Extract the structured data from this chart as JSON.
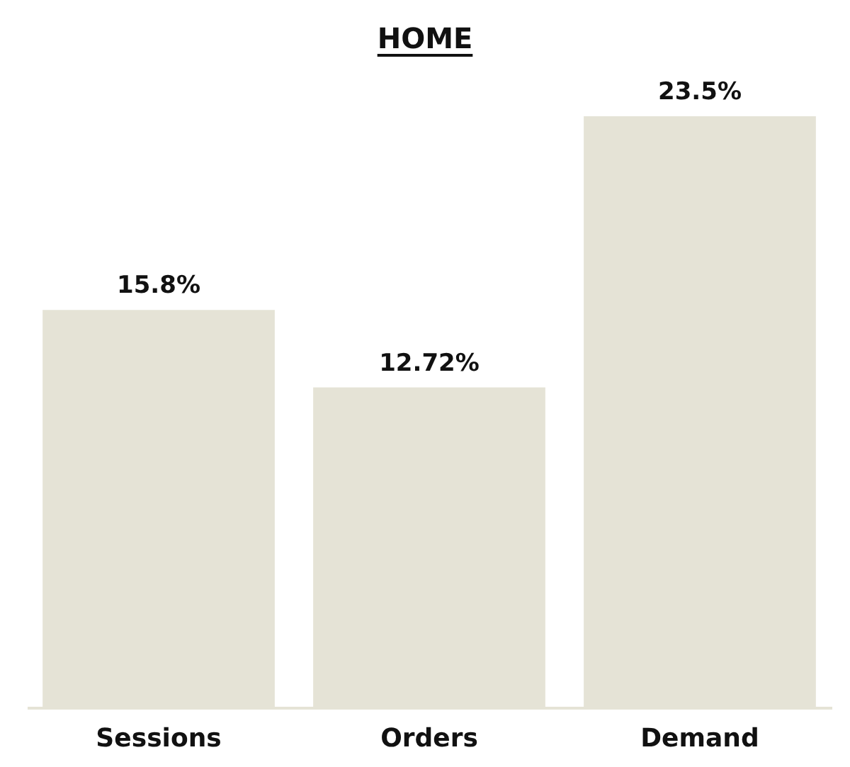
{
  "chart_data": {
    "type": "bar",
    "title": "HOME",
    "categories": [
      "Sessions",
      "Orders",
      "Demand"
    ],
    "values": [
      15.8,
      12.72,
      23.5
    ],
    "value_labels": [
      "15.8%",
      "12.72%",
      "23.5%"
    ],
    "color": "#e5e3d6",
    "tick_labels": "x"
  }
}
